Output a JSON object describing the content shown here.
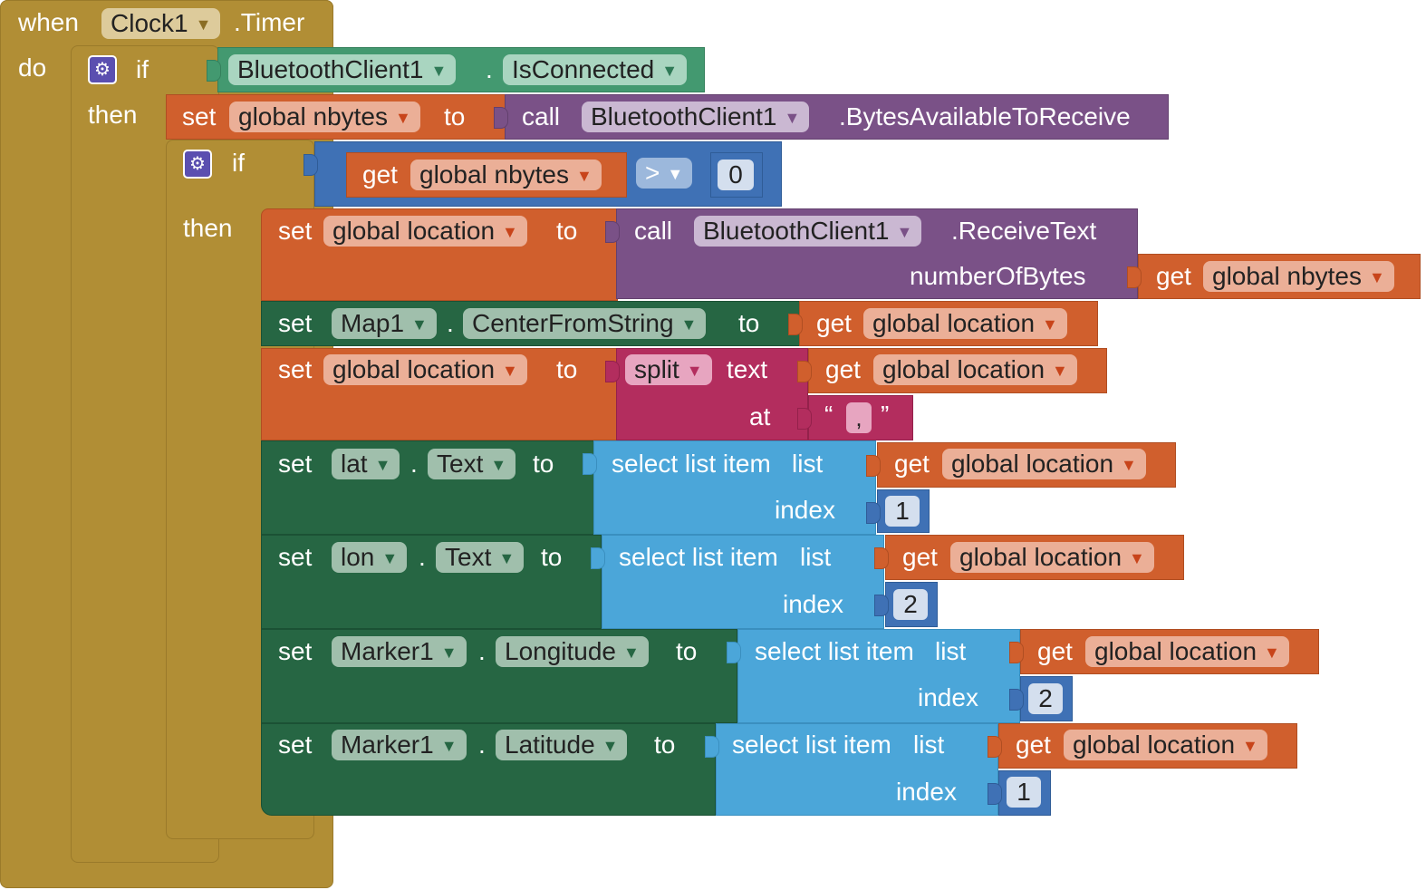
{
  "event": {
    "when": "when",
    "component": "Clock1",
    "event": ".Timer",
    "do": "do"
  },
  "if1": {
    "label": "if",
    "then": "then",
    "component": "BluetoothClient1",
    "dot": ".",
    "property": "IsConnected"
  },
  "set_nbytes": {
    "set": "set",
    "var": "global nbytes",
    "to": "to",
    "call": "call",
    "component": "BluetoothClient1",
    "method": ".BytesAvailableToReceive"
  },
  "if2": {
    "label": "if",
    "then": "then",
    "get": "get",
    "var": "global nbytes",
    "op": ">",
    "value": "0"
  },
  "set_location1": {
    "set": "set",
    "var": "global location",
    "to": "to",
    "call": "call",
    "component": "BluetoothClient1",
    "method": ".ReceiveText",
    "param": "numberOfBytes",
    "get": "get",
    "arg_var": "global nbytes"
  },
  "set_map": {
    "set": "set",
    "component": "Map1",
    "dot": ".",
    "property": "CenterFromString",
    "to": "to",
    "get": "get",
    "var": "global location"
  },
  "set_location2": {
    "set": "set",
    "var": "global location",
    "to": "to",
    "fn": "split",
    "text_label": "text",
    "at_label": "at",
    "get": "get",
    "text_var": "global location",
    "open_quote": "“",
    "sep": ",",
    "close_quote": "”"
  },
  "set_lat": {
    "set": "set",
    "component": "lat",
    "dot": ".",
    "property": "Text",
    "to": "to",
    "select": "select list item",
    "list": "list",
    "index_label": "index",
    "get": "get",
    "var": "global location",
    "index": "1"
  },
  "set_lon": {
    "set": "set",
    "component": "lon",
    "dot": ".",
    "property": "Text",
    "to": "to",
    "select": "select list item",
    "list": "list",
    "index_label": "index",
    "get": "get",
    "var": "global location",
    "index": "2"
  },
  "set_lng": {
    "set": "set",
    "component": "Marker1",
    "dot": ".",
    "property": "Longitude",
    "to": "to",
    "select": "select list item",
    "list": "list",
    "index_label": "index",
    "get": "get",
    "var": "global location",
    "index": "2"
  },
  "set_latm": {
    "set": "set",
    "component": "Marker1",
    "dot": ".",
    "property": "Latitude",
    "to": "to",
    "select": "select list item",
    "list": "list",
    "index_label": "index",
    "get": "get",
    "var": "global location",
    "index": "1"
  },
  "colors": {
    "control": "#B18E35",
    "variable": "#D05F2D",
    "method": "#7A5187",
    "component": "#266643",
    "list": "#4BA6D9",
    "math": "#3F71B5",
    "text": "#B32D5E",
    "bluetooth": "#439970"
  },
  "icons": {
    "mutator": "gear-icon",
    "dropdown": "chevron-down-icon"
  }
}
